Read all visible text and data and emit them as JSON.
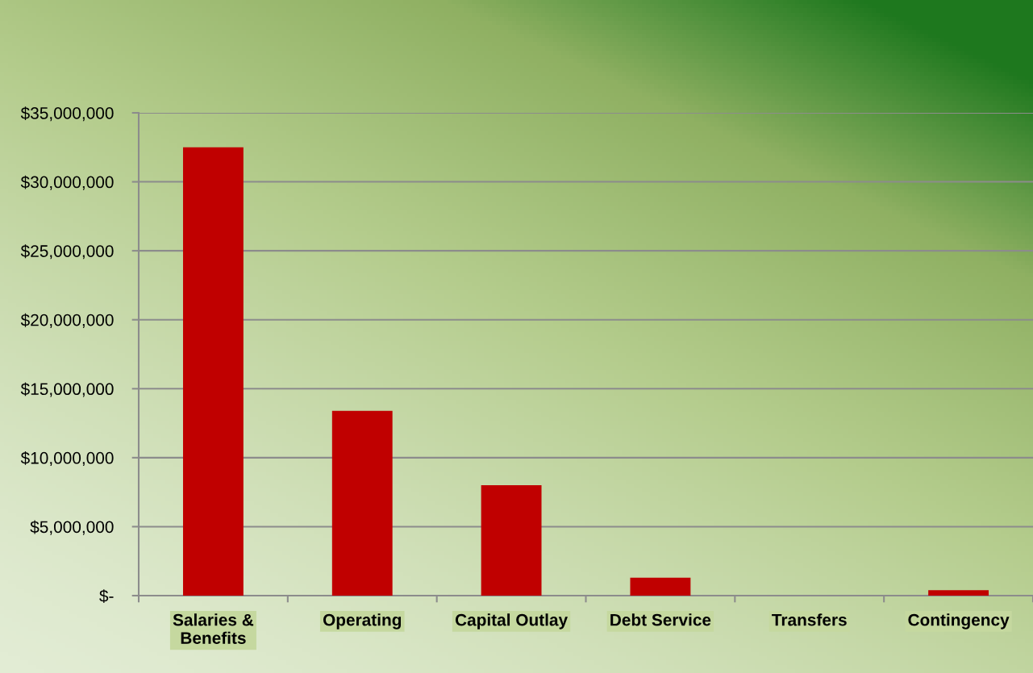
{
  "chart_data": {
    "type": "bar",
    "categories": [
      "Salaries & Benefits",
      "Operating",
      "Capital Outlay",
      "Debt Service",
      "Transfers",
      "Contingency"
    ],
    "values": [
      32500000,
      13400000,
      8000000,
      1300000,
      0,
      400000
    ],
    "color": "#c00000",
    "ylim": [
      0,
      35000000
    ],
    "yticks": [
      {
        "value": 0,
        "label": "$-"
      },
      {
        "value": 5000000,
        "label": "$5,000,000"
      },
      {
        "value": 10000000,
        "label": "$10,000,000"
      },
      {
        "value": 15000000,
        "label": "$15,000,000"
      },
      {
        "value": 20000000,
        "label": "$20,000,000"
      },
      {
        "value": 25000000,
        "label": "$25,000,000"
      },
      {
        "value": 30000000,
        "label": "$30,000,000"
      },
      {
        "value": 35000000,
        "label": "$35,000,000"
      }
    ],
    "grid": "y"
  }
}
